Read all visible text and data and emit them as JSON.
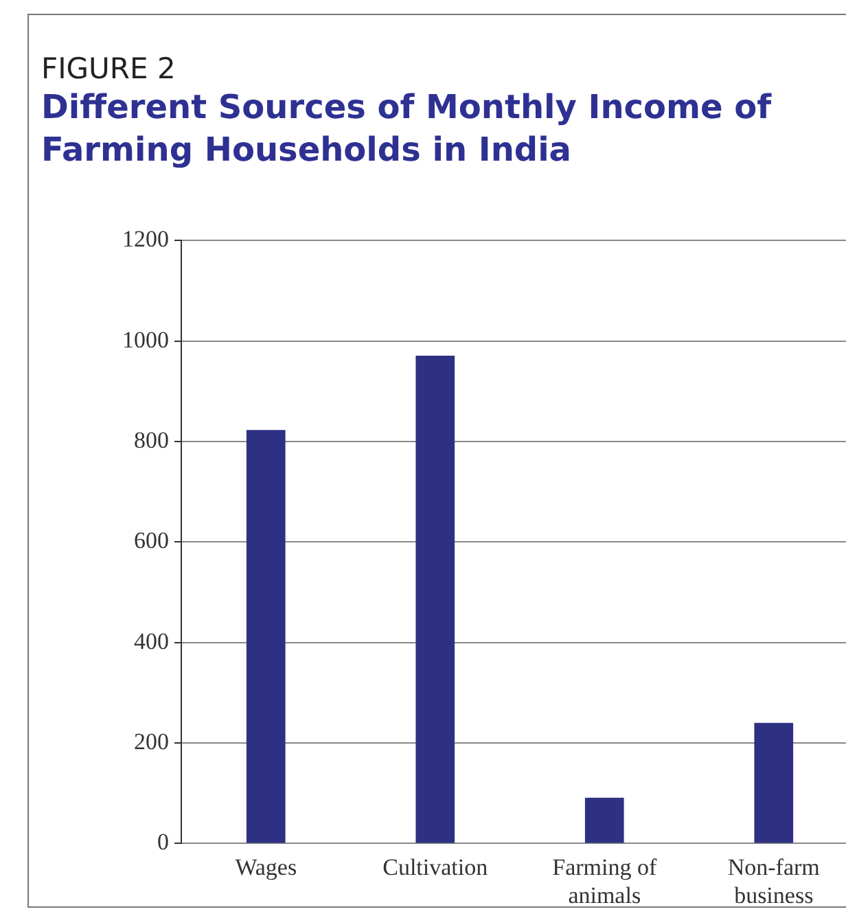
{
  "chart_data": {
    "type": "bar",
    "title": "Different Sources of Monthly Income of Farming Households in India",
    "annotations": [
      "FIGURE 2"
    ],
    "categories": [
      "Wages",
      "Cultivation",
      "Farming of animals",
      "Non-farm business"
    ],
    "values": [
      823,
      971,
      91,
      240
    ],
    "color": "#2e3084",
    "ylim": [
      0,
      1200
    ],
    "yticks": [
      0,
      200,
      400,
      600,
      800,
      1000,
      1200
    ],
    "grid": "y"
  }
}
